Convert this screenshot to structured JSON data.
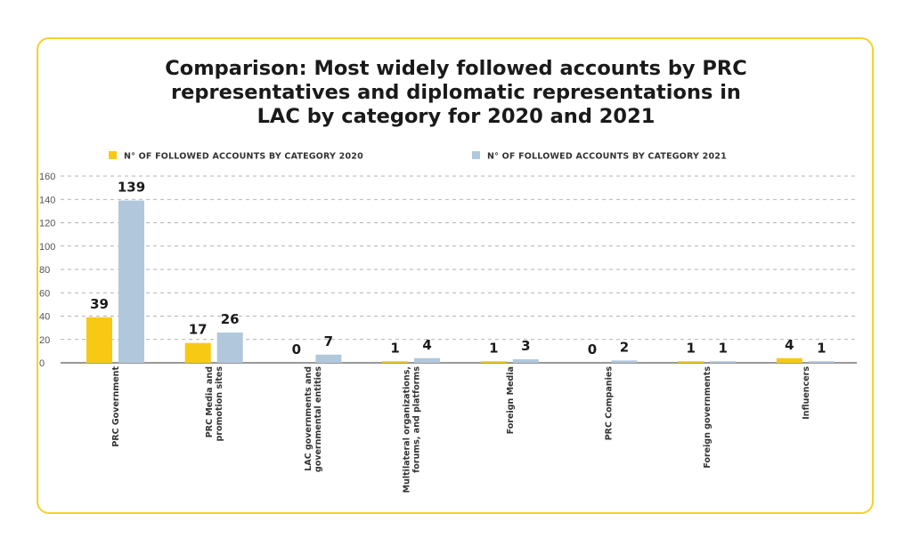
{
  "title_lines": [
    "Comparison: Most widely followed accounts by PRC",
    "representatives and diplomatic representations in",
    "LAC by category for 2020 and 2021"
  ],
  "colors": {
    "border": "#f5d227",
    "series_2020": "#f7c914",
    "series_2021": "#b1c7dc",
    "grid": "#9a9a9a",
    "axis": "#333333"
  },
  "chart_data": {
    "type": "bar",
    "title": "Comparison: Most widely followed accounts by PRC representatives and diplomatic representations in LAC by category for 2020 and 2021",
    "categories": [
      [
        "PRC Government"
      ],
      [
        "PRC Media and",
        "promotion sites"
      ],
      [
        "LAC governments and",
        "governmental entities"
      ],
      [
        "Multilateral organizations,",
        "forums, and platforms"
      ],
      [
        "Foreign Media"
      ],
      [
        "PRC Companies"
      ],
      [
        "Foreign governments"
      ],
      [
        "Influencers"
      ]
    ],
    "series": [
      {
        "name": "N° OF FOLLOWED ACCOUNTS BY CATEGORY 2020",
        "color": "#f7c914",
        "values": [
          39,
          17,
          0,
          1,
          1,
          0,
          1,
          4
        ]
      },
      {
        "name": "N° OF FOLLOWED ACCOUNTS BY CATEGORY 2021",
        "color": "#b1c7dc",
        "values": [
          139,
          26,
          7,
          4,
          3,
          2,
          1,
          1
        ]
      }
    ],
    "ylim": [
      0,
      160
    ],
    "yticks": [
      0,
      20,
      40,
      60,
      80,
      100,
      120,
      140,
      160
    ],
    "grid": true,
    "legend_position": "top"
  }
}
